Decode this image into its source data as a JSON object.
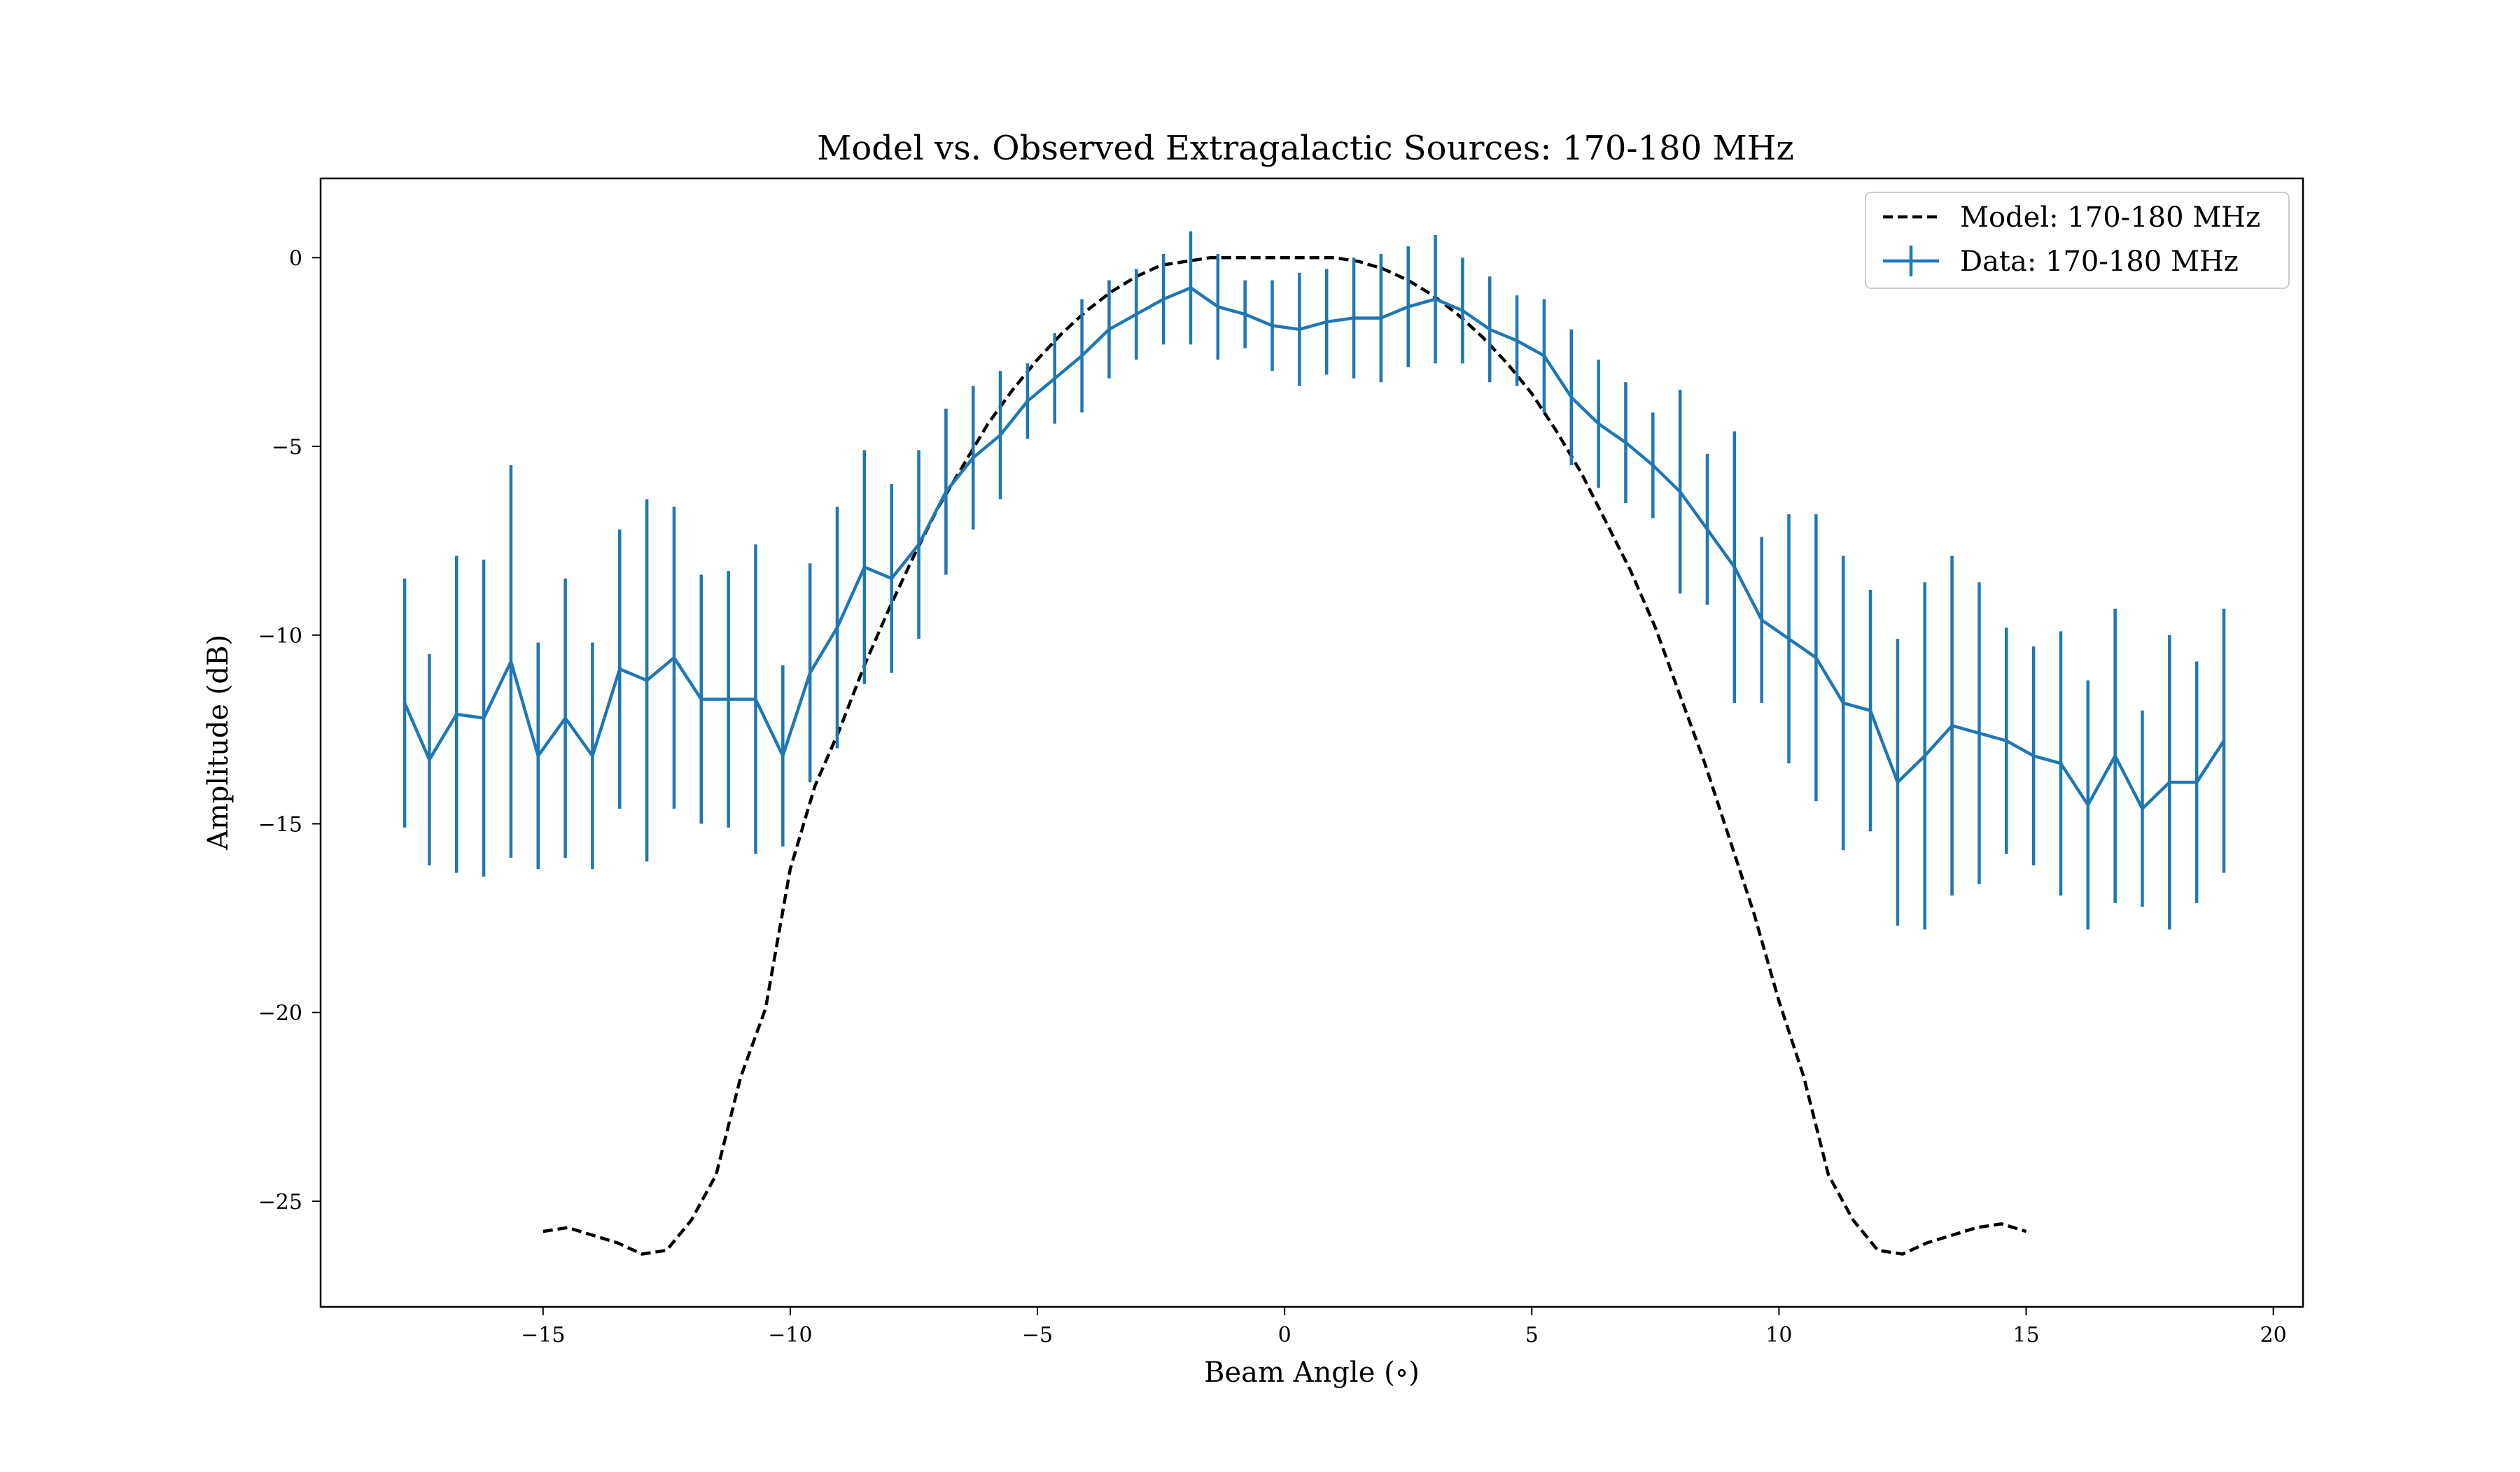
{
  "chart_data": {
    "type": "line",
    "title": "Model vs. Observed Extragalactic Sources: 170-180 MHz",
    "xlabel": "Beam Angle ($^\\circ$)",
    "xlabel_display": "Beam Angle (∘)",
    "ylabel": "Amplitude (dB)",
    "xlim": [
      -19.5,
      20.6
    ],
    "ylim": [
      -27.8,
      2.1
    ],
    "x_ticks": [
      -15,
      -10,
      -5,
      0,
      5,
      10,
      15,
      20
    ],
    "x_tick_labels": [
      "−15",
      "−10",
      "−5",
      "0",
      "5",
      "10",
      "15",
      "20"
    ],
    "y_ticks": [
      0,
      -5,
      -10,
      -15,
      -20,
      -25
    ],
    "y_tick_labels": [
      "0",
      "−5",
      "−10",
      "−15",
      "−20",
      "−25"
    ],
    "grid": false,
    "legend_position": "top-right",
    "series": [
      {
        "name": "Model: 170-180 MHz",
        "style": "dashed",
        "color": "#000000",
        "x": [
          -15.0,
          -14.5,
          -14.0,
          -13.5,
          -13.0,
          -12.5,
          -12.0,
          -11.5,
          -11.0,
          -10.5,
          -10.0,
          -9.5,
          -9.0,
          -8.5,
          -8.0,
          -7.5,
          -7.0,
          -6.5,
          -6.0,
          -5.5,
          -5.0,
          -4.5,
          -4.0,
          -3.5,
          -3.0,
          -2.5,
          -2.0,
          -1.5,
          -1.0,
          -0.5,
          0.0,
          0.5,
          1.0,
          1.5,
          2.0,
          2.5,
          3.0,
          3.5,
          4.0,
          4.5,
          5.0,
          5.5,
          6.0,
          6.5,
          7.0,
          7.5,
          8.0,
          8.5,
          9.0,
          9.5,
          10.0,
          10.5,
          11.0,
          11.5,
          12.0,
          12.5,
          13.0,
          13.5,
          14.0,
          14.5,
          15.0
        ],
        "y": [
          -25.8,
          -25.7,
          -25.9,
          -26.1,
          -26.4,
          -26.3,
          -25.5,
          -24.3,
          -21.7,
          -19.9,
          -16.2,
          -14.0,
          -12.5,
          -10.8,
          -9.3,
          -7.9,
          -6.6,
          -5.5,
          -4.4,
          -3.5,
          -2.7,
          -2.0,
          -1.4,
          -0.9,
          -0.5,
          -0.2,
          -0.1,
          0.0,
          0.0,
          0.0,
          0.0,
          0.0,
          0.0,
          -0.1,
          -0.3,
          -0.6,
          -1.0,
          -1.5,
          -2.1,
          -2.8,
          -3.6,
          -4.6,
          -5.7,
          -7.0,
          -8.3,
          -9.8,
          -11.6,
          -13.4,
          -15.4,
          -17.4,
          -19.7,
          -21.7,
          -24.3,
          -25.5,
          -26.3,
          -26.4,
          -26.1,
          -25.9,
          -25.7,
          -25.6,
          -25.8
        ]
      },
      {
        "name": "Data: 170-180 MHz",
        "style": "solid-errorbar",
        "color": "#1f77b4",
        "x": [
          -17.8,
          -17.3,
          -16.75,
          -16.2,
          -15.65,
          -15.1,
          -14.55,
          -14.0,
          -13.45,
          -12.9,
          -12.35,
          -11.8,
          -11.25,
          -10.7,
          -10.15,
          -9.6,
          -9.05,
          -8.5,
          -7.95,
          -7.4,
          -6.85,
          -6.3,
          -5.75,
          -5.2,
          -4.65,
          -4.1,
          -3.55,
          -3.0,
          -2.45,
          -1.9,
          -1.35,
          -0.8,
          -0.25,
          0.3,
          0.85,
          1.4,
          1.95,
          2.5,
          3.05,
          3.6,
          4.15,
          4.7,
          5.25,
          5.8,
          6.35,
          6.9,
          7.45,
          8.0,
          8.55,
          9.1,
          9.65,
          10.2,
          10.75,
          11.3,
          11.85,
          12.4,
          12.95,
          13.5,
          14.05,
          14.6,
          15.15,
          15.7,
          16.25,
          16.8,
          17.35,
          17.9,
          18.45,
          19.0
        ],
        "y": [
          -11.8,
          -13.3,
          -12.1,
          -12.2,
          -10.7,
          -13.2,
          -12.2,
          -13.2,
          -10.9,
          -11.2,
          -10.6,
          -11.7,
          -11.7,
          -11.7,
          -13.2,
          -11.0,
          -9.8,
          -8.2,
          -8.5,
          -7.6,
          -6.2,
          -5.3,
          -4.7,
          -3.8,
          -3.2,
          -2.6,
          -1.9,
          -1.5,
          -1.1,
          -0.8,
          -1.3,
          -1.5,
          -1.8,
          -1.9,
          -1.7,
          -1.6,
          -1.6,
          -1.3,
          -1.1,
          -1.4,
          -1.9,
          -2.2,
          -2.6,
          -3.7,
          -4.4,
          -4.9,
          -5.5,
          -6.2,
          -7.2,
          -8.2,
          -9.6,
          -10.1,
          -10.6,
          -11.8,
          -12.0,
          -13.9,
          -13.2,
          -12.4,
          -12.6,
          -12.8,
          -13.2,
          -13.4,
          -14.5,
          -13.2,
          -14.6,
          -13.9,
          -13.9,
          -12.8
        ],
        "err": [
          3.3,
          2.8,
          4.2,
          4.2,
          5.2,
          3.0,
          3.7,
          3.0,
          3.7,
          4.8,
          4.0,
          3.3,
          3.4,
          4.1,
          2.4,
          2.9,
          3.2,
          3.1,
          2.5,
          2.5,
          2.2,
          1.9,
          1.7,
          1.0,
          1.2,
          1.5,
          1.3,
          1.2,
          1.2,
          1.5,
          1.4,
          0.9,
          1.2,
          1.5,
          1.4,
          1.6,
          1.7,
          1.6,
          1.7,
          1.4,
          1.4,
          1.2,
          1.5,
          1.8,
          1.7,
          1.6,
          1.4,
          2.7,
          2.0,
          3.6,
          2.2,
          3.3,
          3.8,
          3.9,
          3.2,
          3.8,
          4.6,
          4.5,
          4.0,
          3.0,
          2.9,
          3.5,
          3.3,
          3.9,
          2.6,
          3.9,
          3.2,
          3.5
        ]
      }
    ]
  }
}
